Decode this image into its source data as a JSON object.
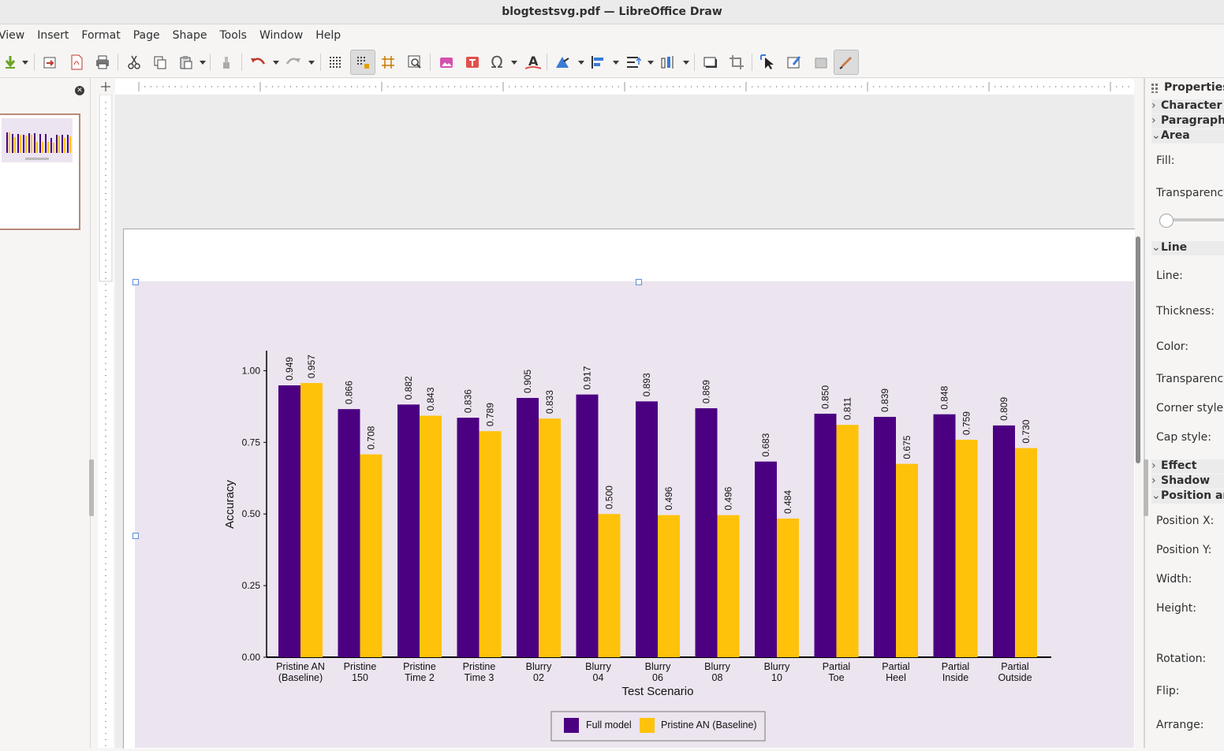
{
  "window": {
    "title": "blogtestsvg.pdf — LibreOffice Draw"
  },
  "menu": [
    "View",
    "Insert",
    "Format",
    "Page",
    "Shape",
    "Tools",
    "Window",
    "Help"
  ],
  "toolbar": {
    "icons": [
      "download-icon",
      "export-icon",
      "export-pdf-icon",
      "print-icon",
      "cut-icon",
      "copy-icon",
      "paste-icon",
      "clone-formatting-icon",
      "undo-icon",
      "redo-icon",
      "grid-icon",
      "snap-grid-icon",
      "helplines-icon",
      "zoom-icon",
      "image-icon",
      "textbox-icon",
      "special-character-icon",
      "fontwork-icon",
      "transform-icon",
      "align-icon",
      "arrange-icon",
      "distribute-icon",
      "shadow-icon",
      "crop-icon",
      "select-icon",
      "toggle-extrusion-icon",
      "points-icon",
      "draw-function-icon"
    ]
  },
  "sidebar": {
    "title": "Properties",
    "sections": [
      {
        "label": "Character",
        "expanded": false
      },
      {
        "label": "Paragraph",
        "expanded": false
      },
      {
        "label": "Area",
        "expanded": true
      },
      {
        "label": "Line",
        "expanded": true
      },
      {
        "label": "Effect",
        "expanded": false
      },
      {
        "label": "Shadow",
        "expanded": false
      },
      {
        "label": "Position an",
        "expanded": true
      }
    ],
    "area_labels": [
      "Fill:",
      "Transparency"
    ],
    "line_labels": [
      "Line:",
      "Thickness:",
      "Color:",
      "Transparency",
      "Corner style:",
      "Cap style:"
    ],
    "position_labels": [
      "Position X:",
      "Position Y:",
      "Width:",
      "Height:",
      "Rotation:",
      "Flip:",
      "Arrange:"
    ]
  },
  "chart_data": {
    "type": "bar",
    "categories": [
      [
        "Pristine AN",
        "(Baseline)"
      ],
      [
        "Pristine",
        "150"
      ],
      [
        "Pristine",
        "Time 2"
      ],
      [
        "Pristine",
        "Time 3"
      ],
      [
        "Blurry",
        "02"
      ],
      [
        "Blurry",
        "04"
      ],
      [
        "Blurry",
        "06"
      ],
      [
        "Blurry",
        "08"
      ],
      [
        "Blurry",
        "10"
      ],
      [
        "Partial",
        "Toe"
      ],
      [
        "Partial",
        "Heel"
      ],
      [
        "Partial",
        "Inside"
      ],
      [
        "Partial",
        "Outside"
      ]
    ],
    "series": [
      {
        "name": "Full model",
        "color": "#4b0082",
        "values": [
          0.949,
          0.866,
          0.882,
          0.836,
          0.905,
          0.917,
          0.893,
          0.869,
          0.683,
          0.85,
          0.839,
          0.848,
          0.809
        ],
        "labels": [
          "0.949",
          "0.866",
          "0.882",
          "0.836",
          "0.905",
          "0.917",
          "0.893",
          "0.869",
          "0.683",
          "0.850",
          "0.839",
          "0.848",
          "0.809"
        ]
      },
      {
        "name": "Pristine AN (Baseline)",
        "color": "#ffc20a",
        "values": [
          0.957,
          0.708,
          0.843,
          0.789,
          0.833,
          0.5,
          0.496,
          0.496,
          0.484,
          0.811,
          0.675,
          0.759,
          0.73
        ],
        "labels": [
          "0.957",
          "0.708",
          "0.843",
          "0.789",
          "0.833",
          "0.500",
          "0.496",
          "0.496",
          "0.484",
          "0.811",
          "0.675",
          "0.759",
          "0.730"
        ]
      }
    ],
    "xlabel": "Test Scenario",
    "ylabel": "Accuracy",
    "yticks": [
      "0.00",
      "0.25",
      "0.50",
      "0.75",
      "1.00"
    ],
    "ylim": [
      0,
      1.07
    ],
    "legend_position": "bottom-center",
    "background": "#ece4ef"
  }
}
